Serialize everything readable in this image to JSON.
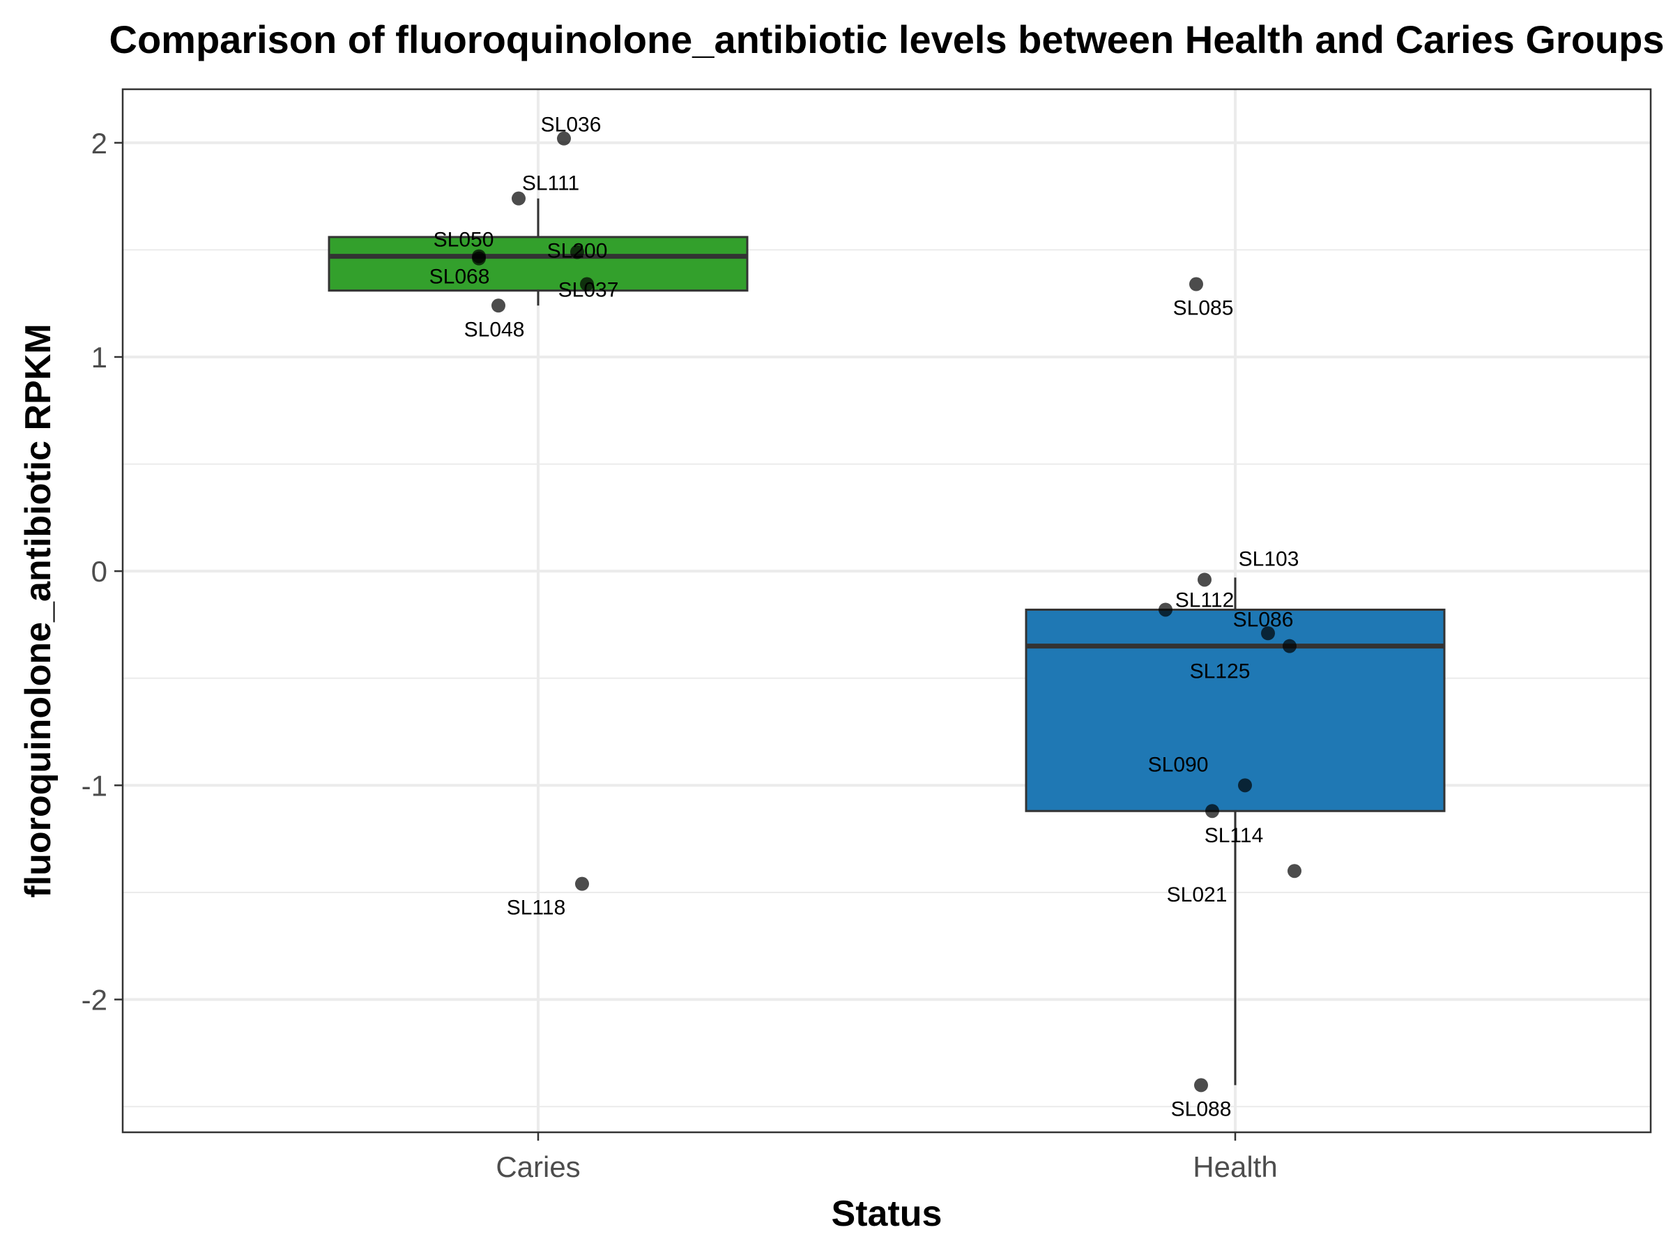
{
  "chart_data": {
    "type": "box",
    "title": "Comparison of fluoroquinolone_antibiotic levels between Health and Caries Groups",
    "xlabel": "Status",
    "ylabel": "fluoroquinolone_antibiotic RPKM",
    "categories": [
      "Caries",
      "Health"
    ],
    "ylim": [
      -2.62,
      2.25
    ],
    "yticks": [
      -2,
      -1,
      0,
      1,
      2
    ],
    "grid": true,
    "legend": "none",
    "colors": {
      "Caries": "#33a02c",
      "Health": "#1f78b4"
    },
    "boxes": [
      {
        "category": "Caries",
        "whisker_low": 1.24,
        "q1": 1.31,
        "median": 1.47,
        "q3": 1.56,
        "whisker_high": 1.74
      },
      {
        "category": "Health",
        "whisker_low": -2.4,
        "q1": -1.12,
        "median": -0.35,
        "q3": -0.18,
        "whisker_high": -0.03
      }
    ],
    "points": [
      {
        "category": "Caries",
        "label": "SL036",
        "value": 2.02
      },
      {
        "category": "Caries",
        "label": "SL111",
        "value": 1.74
      },
      {
        "category": "Caries",
        "label": "SL050",
        "value": 1.47
      },
      {
        "category": "Caries",
        "label": "SL200",
        "value": 1.49
      },
      {
        "category": "Caries",
        "label": "SL068",
        "value": 1.46
      },
      {
        "category": "Caries",
        "label": "SL037",
        "value": 1.34
      },
      {
        "category": "Caries",
        "label": "SL048",
        "value": 1.24
      },
      {
        "category": "Caries",
        "label": "SL118",
        "value": -1.46
      },
      {
        "category": "Health",
        "label": "SL085",
        "value": 1.34
      },
      {
        "category": "Health",
        "label": "SL103",
        "value": -0.04
      },
      {
        "category": "Health",
        "label": "SL112",
        "value": -0.18
      },
      {
        "category": "Health",
        "label": "SL086",
        "value": -0.29
      },
      {
        "category": "Health",
        "label": "SL125",
        "value": -0.35
      },
      {
        "category": "Health",
        "label": "SL090",
        "value": -1.0
      },
      {
        "category": "Health",
        "label": "SL114",
        "value": -1.12
      },
      {
        "category": "Health",
        "label": "SL021",
        "value": -1.4
      },
      {
        "category": "Health",
        "label": "SL088",
        "value": -2.4
      }
    ]
  }
}
